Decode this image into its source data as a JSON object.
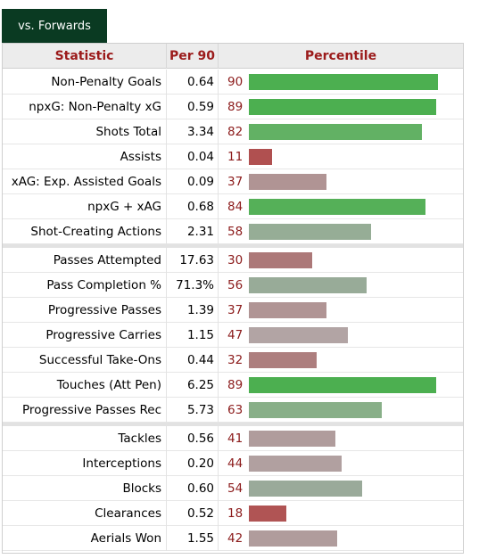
{
  "tab": {
    "label": "vs. Forwards"
  },
  "header": {
    "statistic": "Statistic",
    "per90": "Per 90",
    "percentile": "Percentile"
  },
  "colors": {
    "high": "#4caf50",
    "mid_green": "#6ab56e",
    "neutral_green": "#96ad96",
    "neutral_mauve": "#b09494",
    "low": "#b05656",
    "low_mid": "#a87070"
  },
  "groups": [
    {
      "rows": [
        {
          "stat": "Non-Penalty Goals",
          "per90": "0.64",
          "percentile": "90",
          "pct_value": 90,
          "color": "#4caf50"
        },
        {
          "stat": "npxG: Non-Penalty xG",
          "per90": "0.59",
          "percentile": "89",
          "pct_value": 89,
          "color": "#4caf50"
        },
        {
          "stat": "Shots Total",
          "per90": "3.34",
          "percentile": "82",
          "pct_value": 82,
          "color": "#62b164"
        },
        {
          "stat": "Assists",
          "per90": "0.04",
          "percentile": "11",
          "pct_value": 11,
          "color": "#b05050"
        },
        {
          "stat": "xAG: Exp. Assisted Goals",
          "per90": "0.09",
          "percentile": "37",
          "pct_value": 37,
          "color": "#b09494"
        },
        {
          "stat": "npxG + xAG",
          "per90": "0.68",
          "percentile": "84",
          "pct_value": 84,
          "color": "#55b058"
        },
        {
          "stat": "Shot-Creating Actions",
          "per90": "2.31",
          "percentile": "58",
          "pct_value": 58,
          "color": "#96ad96"
        }
      ]
    },
    {
      "rows": [
        {
          "stat": "Passes Attempted",
          "per90": "17.63",
          "percentile": "30",
          "pct_value": 30,
          "color": "#ac7878"
        },
        {
          "stat": "Pass Completion %",
          "per90": "71.3%",
          "percentile": "56",
          "pct_value": 56,
          "color": "#98ab98"
        },
        {
          "stat": "Progressive Passes",
          "per90": "1.39",
          "percentile": "37",
          "pct_value": 37,
          "color": "#b09494"
        },
        {
          "stat": "Progressive Carries",
          "per90": "1.15",
          "percentile": "47",
          "pct_value": 47,
          "color": "#b2a4a4"
        },
        {
          "stat": "Successful Take-Ons",
          "per90": "0.44",
          "percentile": "32",
          "pct_value": 32,
          "color": "#ad7e7e"
        },
        {
          "stat": "Touches (Att Pen)",
          "per90": "6.25",
          "percentile": "89",
          "pct_value": 89,
          "color": "#4caf50"
        },
        {
          "stat": "Progressive Passes Rec",
          "per90": "5.73",
          "percentile": "63",
          "pct_value": 63,
          "color": "#88af88"
        }
      ]
    },
    {
      "rows": [
        {
          "stat": "Tackles",
          "per90": "0.56",
          "percentile": "41",
          "pct_value": 41,
          "color": "#b09c9c"
        },
        {
          "stat": "Interceptions",
          "per90": "0.20",
          "percentile": "44",
          "pct_value": 44,
          "color": "#b1a0a0"
        },
        {
          "stat": "Blocks",
          "per90": "0.60",
          "percentile": "54",
          "pct_value": 54,
          "color": "#9aaa9a"
        },
        {
          "stat": "Clearances",
          "per90": "0.52",
          "percentile": "18",
          "pct_value": 18,
          "color": "#b05454"
        },
        {
          "stat": "Aerials Won",
          "per90": "1.55",
          "percentile": "42",
          "pct_value": 42,
          "color": "#b09c9c"
        }
      ]
    }
  ]
}
